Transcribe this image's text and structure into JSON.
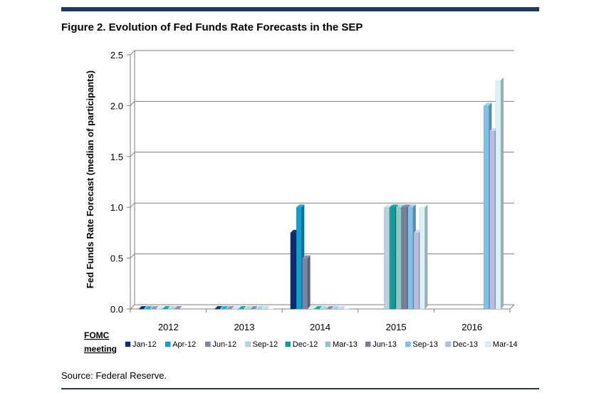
{
  "figure_title": "Figure 2. Evolution of Fed Funds Rate Forecasts in the SEP",
  "source": "Source: Federal Reserve.",
  "chart_data": {
    "type": "bar",
    "ylabel": "Fed Funds Rate Forecast (median of participants)",
    "legend_title": "FOMC meeting",
    "legend_position": "bottom",
    "ylim": [
      0,
      2.5
    ],
    "yticks": [
      "0.0",
      "0.5",
      "1.0",
      "1.5",
      "2.0",
      "2.5"
    ],
    "grid": true,
    "categories": [
      "2012",
      "2013",
      "2014",
      "2015",
      "2016"
    ],
    "series": [
      {
        "name": "Jan-12",
        "color": "#0d2e6e",
        "values": [
          0,
          0,
          0.75,
          null,
          null
        ]
      },
      {
        "name": "Apr-12",
        "color": "#129ed1",
        "values": [
          0,
          0,
          1.0,
          null,
          null
        ]
      },
      {
        "name": "Jun-12",
        "color": "#7b86a4",
        "values": [
          0,
          0,
          0.5,
          null,
          null
        ]
      },
      {
        "name": "Sep-12",
        "color": "#b7d3dc",
        "values": [
          0,
          0,
          0,
          1.0,
          null
        ]
      },
      {
        "name": "Dec-12",
        "color": "#0b9d96",
        "values": [
          0,
          0,
          0,
          1.0,
          null
        ]
      },
      {
        "name": "Mar-13",
        "color": "#8ec8c4",
        "values": [
          0,
          0,
          0,
          1.0,
          null
        ]
      },
      {
        "name": "Jun-13",
        "color": "#7b7f96",
        "values": [
          0,
          0,
          0,
          1.0,
          null
        ]
      },
      {
        "name": "Sep-13",
        "color": "#7fc1ea",
        "values": [
          null,
          0,
          0,
          1.0,
          2.0
        ]
      },
      {
        "name": "Dec-13",
        "color": "#b7bedf",
        "values": [
          null,
          0,
          0,
          0.75,
          1.75
        ]
      },
      {
        "name": "Mar-14",
        "color": "#daf1f8",
        "values": [
          null,
          0,
          0,
          1.0,
          2.25
        ]
      }
    ]
  }
}
